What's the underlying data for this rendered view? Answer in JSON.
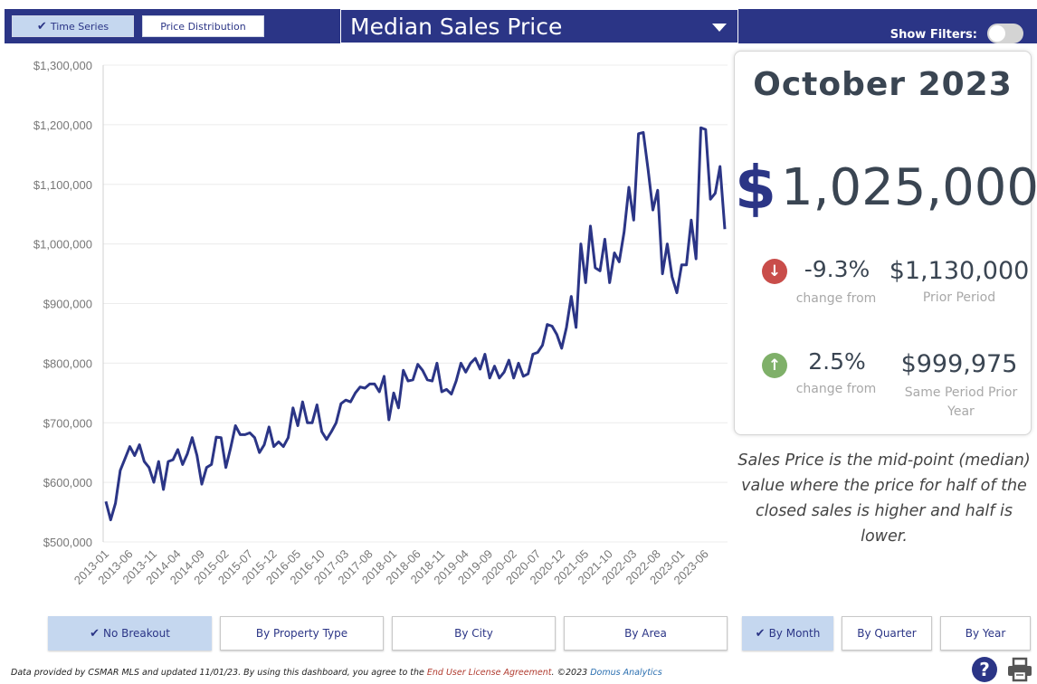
{
  "toolbar": {
    "time_series_label": "Time Series",
    "price_distribution_label": "Price Distribution",
    "measure_label": "Median Sales Price",
    "show_filters_label": "Show Filters:"
  },
  "summary": {
    "period": "October 2023",
    "currency_symbol": "$",
    "value": "1,025,000",
    "prior_period": {
      "pct": "-9.3%",
      "pct_label": "change from",
      "value": "$1,130,000",
      "value_label": "Prior Period",
      "direction": "down"
    },
    "prior_year": {
      "pct": "2.5%",
      "pct_label": "change from",
      "value": "$999,975",
      "value_label": "Same Period Prior Year",
      "direction": "up"
    }
  },
  "description": "Sales Price is the mid-point (median) value where the price for half of the closed sales is higher and half is lower.",
  "breakout_buttons": [
    {
      "label": "No Breakout",
      "active": true
    },
    {
      "label": "By Property Type",
      "active": false
    },
    {
      "label": "By City",
      "active": false
    },
    {
      "label": "By Area",
      "active": false
    }
  ],
  "period_buttons": [
    {
      "label": "By Month",
      "active": true
    },
    {
      "label": "By Quarter",
      "active": false
    },
    {
      "label": "By Year",
      "active": false
    }
  ],
  "footer": {
    "text_a": "Data provided by CSMAR MLS and updated 11/01/23.  By using this dashboard, you agree to the ",
    "eula": "End User License Agreement",
    "text_b": ".  ©2023 ",
    "brand": "Domus Analytics"
  },
  "colors": {
    "brand": "#2b3586",
    "active_button": "#c5d7ef",
    "line": "#2b3586",
    "down": "#c94d4a",
    "up": "#7fb069"
  },
  "icons": {
    "check": "check-icon",
    "help": "question-icon",
    "print": "printer-icon",
    "down_arrow": "arrow-down-icon",
    "up_arrow": "arrow-up-icon"
  },
  "chart_data": {
    "type": "line",
    "title": "",
    "xlabel": "",
    "ylabel": "",
    "ylim": [
      500000,
      1300000
    ],
    "y_ticks": [
      "$500,000",
      "$600,000",
      "$700,000",
      "$800,000",
      "$900,000",
      "$1,000,000",
      "$1,100,000",
      "$1,200,000",
      "$1,300,000"
    ],
    "x_tick_labels": [
      "2013-01",
      "2013-06",
      "2013-11",
      "2014-04",
      "2014-09",
      "2015-02",
      "2015-07",
      "2015-12",
      "2016-05",
      "2016-10",
      "2017-03",
      "2017-08",
      "2018-01",
      "2018-06",
      "2018-11",
      "2019-04",
      "2019-09",
      "2020-02",
      "2020-07",
      "2020-12",
      "2021-05",
      "2021-10",
      "2022-03",
      "2022-08",
      "2023-01",
      "2023-06"
    ],
    "x_start": "2013-01",
    "x_end": "2023-10",
    "series": [
      {
        "values": [
          568000,
          537000,
          565000,
          620000,
          640000,
          660000,
          645000,
          663000,
          635000,
          625000,
          600000,
          635000,
          588000,
          635000,
          638000,
          655000,
          630000,
          648000,
          675000,
          645000,
          597000,
          625000,
          630000,
          676000,
          675000,
          625000,
          658000,
          695000,
          680000,
          680000,
          683000,
          675000,
          650000,
          663000,
          693000,
          660000,
          668000,
          660000,
          675000,
          725000,
          695000,
          735000,
          700000,
          700000,
          730000,
          685000,
          672000,
          685000,
          700000,
          732000,
          738000,
          735000,
          750000,
          760000,
          758000,
          765000,
          765000,
          752000,
          778000,
          705000,
          750000,
          725000,
          788000,
          770000,
          772000,
          798000,
          788000,
          772000,
          770000,
          800000,
          752000,
          756000,
          748000,
          770000,
          800000,
          785000,
          800000,
          808000,
          790000,
          815000,
          775000,
          795000,
          775000,
          785000,
          805000,
          775000,
          800000,
          778000,
          782000,
          815000,
          818000,
          830000,
          865000,
          862000,
          848000,
          825000,
          860000,
          912000,
          860000,
          1000000,
          935000,
          1030000,
          960000,
          955000,
          1008000,
          935000,
          985000,
          970000,
          1020000,
          1095000,
          1040000,
          1185000,
          1187000,
          1125000,
          1057000,
          1090000,
          950000,
          1000000,
          945000,
          918000,
          965000,
          965000,
          1040000,
          975000,
          1195000,
          1192000,
          1075000,
          1085000,
          1130000,
          1025000
        ]
      }
    ],
    "grid": "horizontal",
    "legend": "none"
  }
}
